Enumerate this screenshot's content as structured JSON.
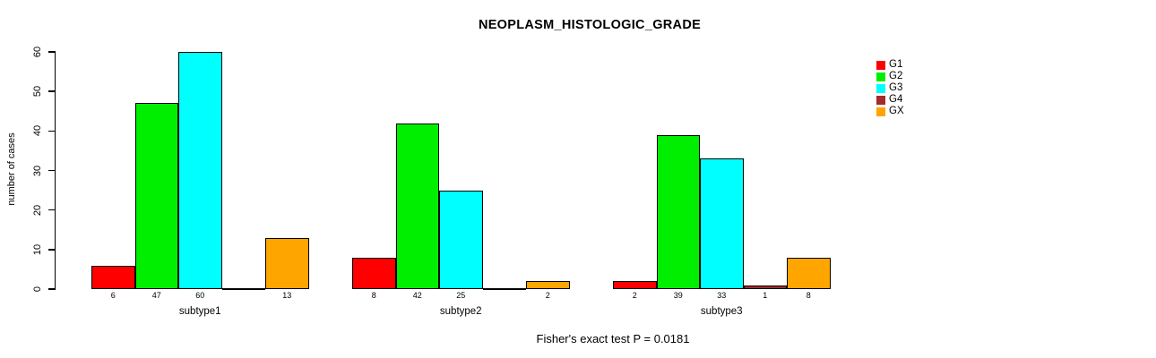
{
  "chart_data": {
    "type": "bar",
    "title": "NEOPLASM_HISTOLOGIC_GRADE",
    "ylabel": "number of cases",
    "xlabel": "",
    "ylim": [
      0,
      60
    ],
    "yticks": [
      0,
      10,
      20,
      30,
      40,
      50,
      60
    ],
    "grid": false,
    "legend_position": "right",
    "bar_value_labels_shown": true,
    "categories": [
      "subtype1",
      "subtype2",
      "subtype3"
    ],
    "series": [
      {
        "name": "G1",
        "color": "#FF0000",
        "values": [
          6,
          8,
          2
        ]
      },
      {
        "name": "G2",
        "color": "#00EE00",
        "values": [
          47,
          42,
          39
        ]
      },
      {
        "name": "G3",
        "color": "#00FFFF",
        "values": [
          60,
          25,
          33
        ]
      },
      {
        "name": "G4",
        "color": "#A52A2A",
        "values": [
          0,
          0,
          1
        ]
      },
      {
        "name": "GX",
        "color": "#FFA500",
        "values": [
          13,
          2,
          8
        ]
      }
    ],
    "annotation": "Fisher's exact test P = 0.0181",
    "colors": {
      "axis": "#000000",
      "text": "#000000",
      "background": "#ffffff"
    }
  }
}
